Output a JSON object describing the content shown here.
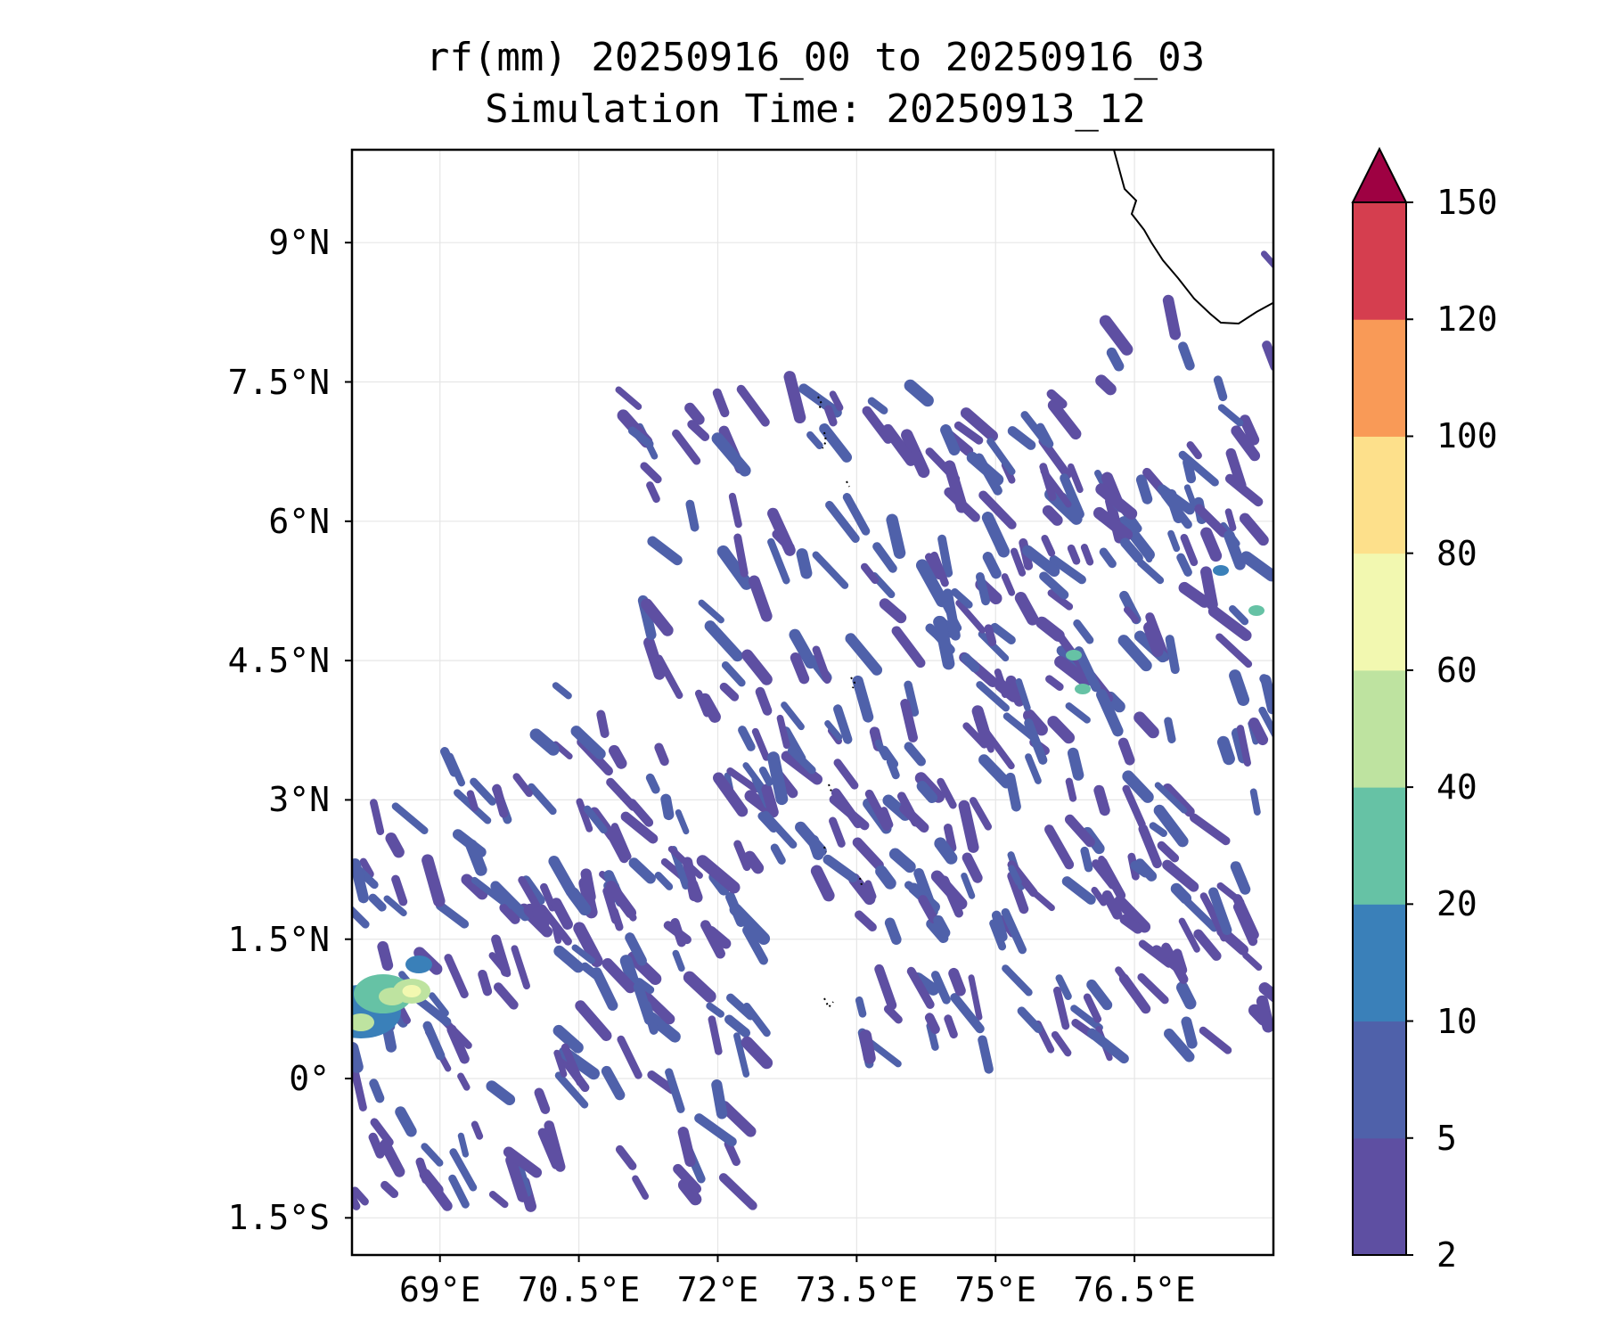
{
  "title": {
    "line1": "rf(mm) 20250916_00 to 20250916_03",
    "line2": "Simulation Time: 20250913_12"
  },
  "map": {
    "lon_range": [
      68.05,
      78.0
    ],
    "lat_range": [
      -1.9,
      10.0
    ],
    "gridlines": true,
    "coastline": "southwest coast of India (Kerala) in upper-right",
    "lat_ticks": [
      {
        "value": 9,
        "label": "9°N"
      },
      {
        "value": 7.5,
        "label": "7.5°N"
      },
      {
        "value": 6,
        "label": "6°N"
      },
      {
        "value": 4.5,
        "label": "4.5°N"
      },
      {
        "value": 3,
        "label": "3°N"
      },
      {
        "value": 1.5,
        "label": "1.5°N"
      },
      {
        "value": 0,
        "label": "0°"
      },
      {
        "value": -1.5,
        "label": "1.5°S"
      }
    ],
    "lon_ticks": [
      {
        "value": 69,
        "label": "69°E"
      },
      {
        "value": 70.5,
        "label": "70.5°E"
      },
      {
        "value": 72,
        "label": "72°E"
      },
      {
        "value": 73.5,
        "label": "73.5°E"
      },
      {
        "value": 75,
        "label": "75°E"
      },
      {
        "value": 76.5,
        "label": "76.5°E"
      }
    ]
  },
  "colorbar": {
    "extend": "max",
    "extend_color": "#9e0142",
    "levels": [
      {
        "value": 2,
        "label": "2",
        "color": "#5e4fa2"
      },
      {
        "value": 5,
        "label": "5",
        "color": "#4f61aa"
      },
      {
        "value": 10,
        "label": "10",
        "color": "#3a80b9"
      },
      {
        "value": 20,
        "label": "20",
        "color": "#66c2a5"
      },
      {
        "value": 40,
        "label": "40",
        "color": "#bee3a0"
      },
      {
        "value": 60,
        "label": "60",
        "color": "#f2f8b0"
      },
      {
        "value": 80,
        "label": "80",
        "color": "#fde08b"
      },
      {
        "value": 100,
        "label": "100",
        "color": "#f99a57"
      },
      {
        "value": 120,
        "label": "120",
        "color": "#d53e4f"
      },
      {
        "value": 150,
        "label": "150"
      }
    ]
  }
}
